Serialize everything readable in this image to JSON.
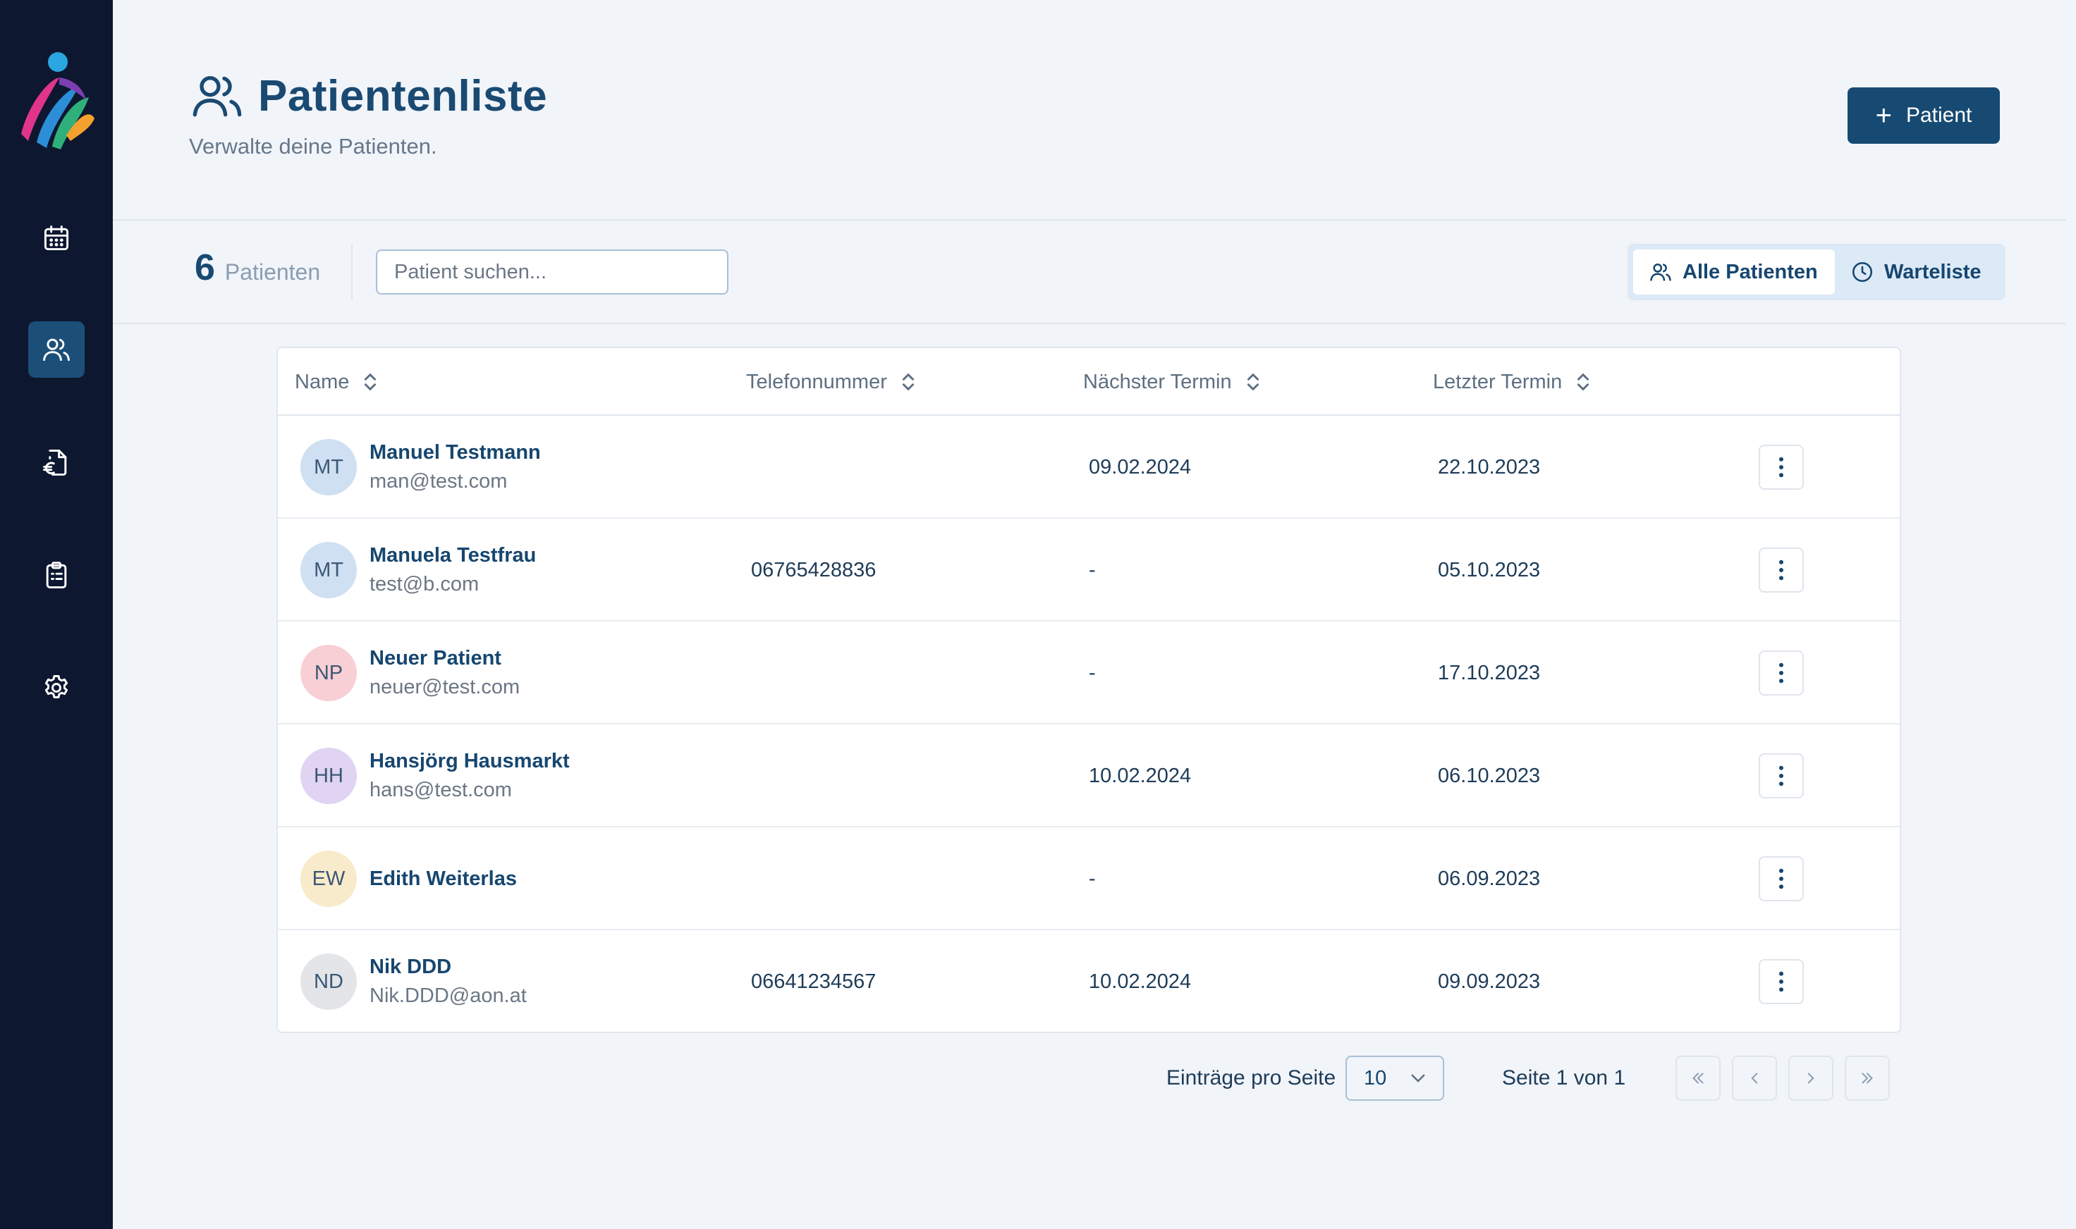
{
  "colors": {
    "sidebar": "#0e1730",
    "primary": "#174a72",
    "accent_active": "#1c4f78",
    "background": "#f1f4f9"
  },
  "sidebar": {
    "items": [
      {
        "icon": "calendar-icon"
      },
      {
        "icon": "users-icon",
        "active": true
      },
      {
        "icon": "euro-document-icon"
      },
      {
        "icon": "clipboard-icon"
      },
      {
        "icon": "gear-icon"
      }
    ]
  },
  "header": {
    "title": "Patientenliste",
    "subtitle": "Verwalte deine Patienten.",
    "add_label": "Patient"
  },
  "toolbar": {
    "count": "6",
    "count_label": "Patienten",
    "search_placeholder": "Patient suchen...",
    "tabs": [
      {
        "label": "Alle Patienten",
        "icon": "users-icon",
        "active": true
      },
      {
        "label": "Warteliste",
        "icon": "clock-icon",
        "active": false
      }
    ]
  },
  "table": {
    "columns": [
      "Name",
      "Telefonnummer",
      "Nächster Termin",
      "Letzter Termin"
    ],
    "rows": [
      {
        "initials": "MT",
        "avatar_color": "#cfe0f2",
        "name": "Manuel Testmann",
        "email": "man@test.com",
        "phone": "",
        "next": "09.02.2024",
        "last": "22.10.2023"
      },
      {
        "initials": "MT",
        "avatar_color": "#cfe0f2",
        "name": "Manuela Testfrau",
        "email": "test@b.com",
        "phone": "06765428836",
        "next": "-",
        "last": "05.10.2023"
      },
      {
        "initials": "NP",
        "avatar_color": "#f7cfd4",
        "name": "Neuer Patient",
        "email": "neuer@test.com",
        "phone": "",
        "next": "-",
        "last": "17.10.2023"
      },
      {
        "initials": "HH",
        "avatar_color": "#e0d4f2",
        "name": "Hansjörg Hausmarkt",
        "email": "hans@test.com",
        "phone": "",
        "next": "10.02.2024",
        "last": "06.10.2023"
      },
      {
        "initials": "EW",
        "avatar_color": "#f8ebcc",
        "name": "Edith Weiterlas",
        "email": "",
        "phone": "",
        "next": "-",
        "last": "06.09.2023"
      },
      {
        "initials": "ND",
        "avatar_color": "#e3e5e8",
        "name": "Nik DDD",
        "email": "Nik.DDD@aon.at",
        "phone": "06641234567",
        "next": "10.02.2024",
        "last": "09.09.2023"
      }
    ]
  },
  "pagination": {
    "per_page_label": "Einträge pro Seite",
    "per_page_value": "10",
    "page_info": "Seite 1 von 1"
  }
}
